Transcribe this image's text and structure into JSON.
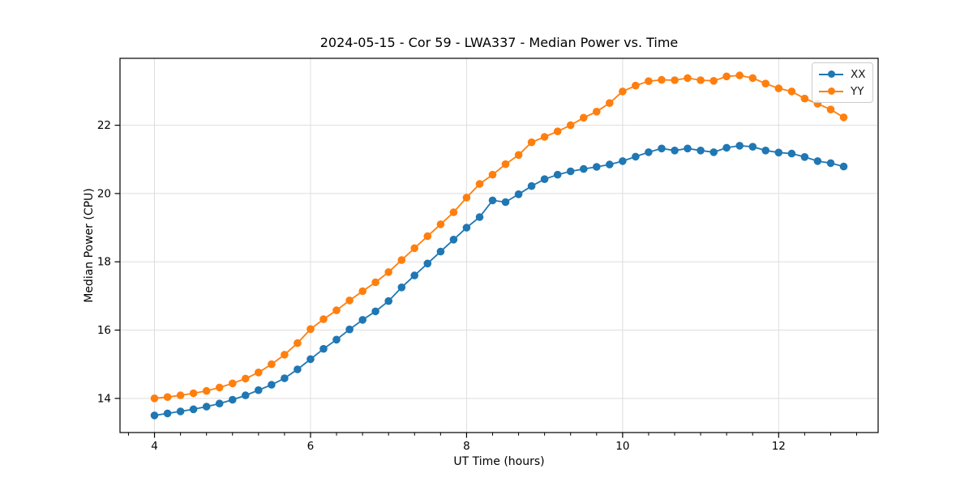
{
  "figure": {
    "background": "#ffffff",
    "plot_background": "#ffffff",
    "spine_color": "#000000",
    "grid_color": "#dedede"
  },
  "chart_data": {
    "type": "line",
    "title": "2024-05-15 - Cor 59 - LWA337 - Median Power vs. Time",
    "xlabel": "UT Time (hours)",
    "ylabel": "Median Power (CPU)",
    "xlim": [
      3.558,
      13.275
    ],
    "ylim": [
      13.0,
      23.96
    ],
    "x_major_ticks": [
      4,
      6,
      8,
      10,
      12
    ],
    "x_minor_tick_interval": 0.33333,
    "y_major_ticks": [
      14,
      16,
      18,
      20,
      22
    ],
    "grid": true,
    "legend_position": "upper right",
    "marker": "circle",
    "x": [
      4.0,
      4.167,
      4.333,
      4.5,
      4.667,
      4.833,
      5.0,
      5.167,
      5.333,
      5.5,
      5.667,
      5.833,
      6.0,
      6.167,
      6.333,
      6.5,
      6.667,
      6.833,
      7.0,
      7.167,
      7.333,
      7.5,
      7.667,
      7.833,
      8.0,
      8.167,
      8.333,
      8.5,
      8.667,
      8.833,
      9.0,
      9.167,
      9.333,
      9.5,
      9.667,
      9.833,
      10.0,
      10.167,
      10.333,
      10.5,
      10.667,
      10.833,
      11.0,
      11.167,
      11.333,
      11.5,
      11.667,
      11.833,
      12.0,
      12.167,
      12.333,
      12.5,
      12.667,
      12.833
    ],
    "series": [
      {
        "name": "XX",
        "color": "#1f77b4",
        "values": [
          13.5,
          13.56,
          13.62,
          13.68,
          13.76,
          13.85,
          13.96,
          14.09,
          14.24,
          14.4,
          14.59,
          14.85,
          15.15,
          15.45,
          15.72,
          16.02,
          16.3,
          16.55,
          16.85,
          17.25,
          17.6,
          17.95,
          18.3,
          18.65,
          19.0,
          19.31,
          19.8,
          19.75,
          19.98,
          20.22,
          20.42,
          20.55,
          20.65,
          20.72,
          20.78,
          20.85,
          20.95,
          21.08,
          21.21,
          21.32,
          21.26,
          21.32,
          21.26,
          21.21,
          21.34,
          21.4,
          21.37,
          21.26,
          21.2,
          21.17,
          21.07,
          20.95,
          20.89,
          20.79
        ]
      },
      {
        "name": "YY",
        "color": "#ff7f0e",
        "values": [
          14.0,
          14.04,
          14.09,
          14.15,
          14.22,
          14.32,
          14.44,
          14.58,
          14.76,
          15.0,
          15.28,
          15.62,
          16.03,
          16.32,
          16.58,
          16.87,
          17.14,
          17.4,
          17.7,
          18.05,
          18.4,
          18.75,
          19.1,
          19.45,
          19.88,
          20.28,
          20.55,
          20.86,
          21.13,
          21.5,
          21.66,
          21.82,
          22.0,
          22.22,
          22.4,
          22.65,
          22.99,
          23.16,
          23.29,
          23.33,
          23.32,
          23.38,
          23.32,
          23.3,
          23.43,
          23.46,
          23.38,
          23.22,
          23.08,
          22.99,
          22.78,
          22.63,
          22.46,
          22.23
        ]
      }
    ]
  }
}
